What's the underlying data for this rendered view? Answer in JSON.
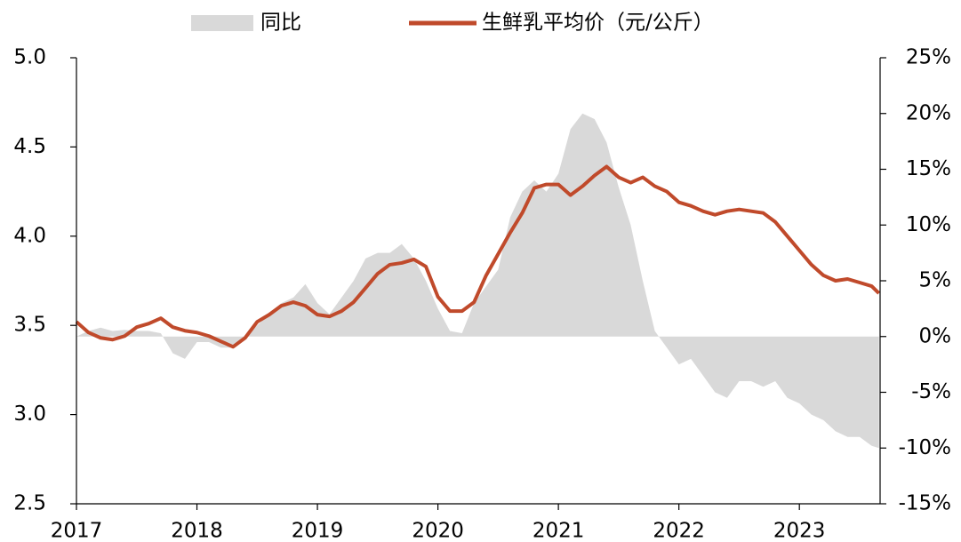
{
  "chart_data": {
    "type": "area-line",
    "x": [
      2017,
      2017.1,
      2017.2,
      2017.3,
      2017.4,
      2017.5,
      2017.6,
      2017.7,
      2017.8,
      2017.9,
      2018,
      2018.1,
      2018.2,
      2018.3,
      2018.4,
      2018.5,
      2018.6,
      2018.7,
      2018.8,
      2018.9,
      2019,
      2019.1,
      2019.2,
      2019.3,
      2019.4,
      2019.5,
      2019.6,
      2019.7,
      2019.8,
      2019.9,
      2020,
      2020.1,
      2020.2,
      2020.3,
      2020.4,
      2020.5,
      2020.6,
      2020.7,
      2020.8,
      2020.9,
      2021,
      2021.1,
      2021.2,
      2021.3,
      2021.4,
      2021.5,
      2021.6,
      2021.7,
      2021.8,
      2021.9,
      2022,
      2022.1,
      2022.2,
      2022.3,
      2022.4,
      2022.5,
      2022.6,
      2022.7,
      2022.8,
      2022.9,
      2023,
      2023.1,
      2023.2,
      2023.3,
      2023.4,
      2023.5,
      2023.6,
      2023.66
    ],
    "series": [
      {
        "name": "同比",
        "kind": "area",
        "axis": "y2",
        "color": "#d9d9d9",
        "values": [
          0,
          0.5,
          0.8,
          0.5,
          0.6,
          0.5,
          0.5,
          0.3,
          -1.5,
          -2,
          -0.5,
          -0.5,
          -1,
          -1,
          0,
          1,
          2,
          3,
          3.5,
          4.7,
          3,
          2,
          3.5,
          5,
          7,
          7.5,
          7.5,
          8.3,
          7,
          5,
          2.5,
          0.5,
          0.3,
          3,
          4.5,
          6,
          10.7,
          13,
          14,
          13,
          14.6,
          18.6,
          20,
          19.5,
          17.4,
          13.4,
          10,
          5,
          0.5,
          -1,
          -2.5,
          -2,
          -3.5,
          -5,
          -5.5,
          -4,
          -4,
          -4.5,
          -4,
          -5.5,
          -6,
          -7,
          -7.5,
          -8.5,
          -9,
          -9,
          -9.8,
          -10
        ]
      },
      {
        "name": "生鲜乳平均价（元/公斤）",
        "kind": "line",
        "axis": "y",
        "color": "#c04a2b",
        "values": [
          3.52,
          3.46,
          3.43,
          3.42,
          3.44,
          3.49,
          3.51,
          3.54,
          3.49,
          3.47,
          3.46,
          3.44,
          3.41,
          3.38,
          3.43,
          3.52,
          3.56,
          3.61,
          3.63,
          3.61,
          3.56,
          3.55,
          3.58,
          3.63,
          3.71,
          3.79,
          3.84,
          3.85,
          3.87,
          3.83,
          3.66,
          3.58,
          3.58,
          3.63,
          3.78,
          3.9,
          4.02,
          4.13,
          4.27,
          4.29,
          4.29,
          4.23,
          4.28,
          4.34,
          4.39,
          4.33,
          4.3,
          4.33,
          4.28,
          4.25,
          4.19,
          4.17,
          4.14,
          4.12,
          4.14,
          4.15,
          4.14,
          4.13,
          4.08,
          4,
          3.92,
          3.84,
          3.78,
          3.75,
          3.76,
          3.74,
          3.72,
          3.68
        ]
      }
    ],
    "xlim": [
      2017,
      2023.67
    ],
    "xticks": [
      2017,
      2018,
      2019,
      2020,
      2021,
      2022,
      2023
    ],
    "ylim": [
      2.5,
      5
    ],
    "yticks": [
      2.5,
      {
        "value": 3,
        "label": "3.0"
      },
      3.5,
      {
        "value": 4,
        "label": "4.0"
      },
      4.5,
      {
        "value": 5,
        "label": "5.0"
      }
    ],
    "y2lim": [
      -15,
      25
    ],
    "y2ticks": [
      {
        "value": -15,
        "label": "-15%"
      },
      {
        "value": -10,
        "label": "-10%"
      },
      {
        "value": -5,
        "label": "-5%"
      },
      {
        "value": 0,
        "label": "0%"
      },
      {
        "value": 5,
        "label": "5%"
      },
      {
        "value": 10,
        "label": "10%"
      },
      {
        "value": 15,
        "label": "15%"
      },
      {
        "value": 20,
        "label": "20%"
      },
      {
        "value": 25,
        "label": "25%"
      }
    ],
    "legend": "top"
  }
}
